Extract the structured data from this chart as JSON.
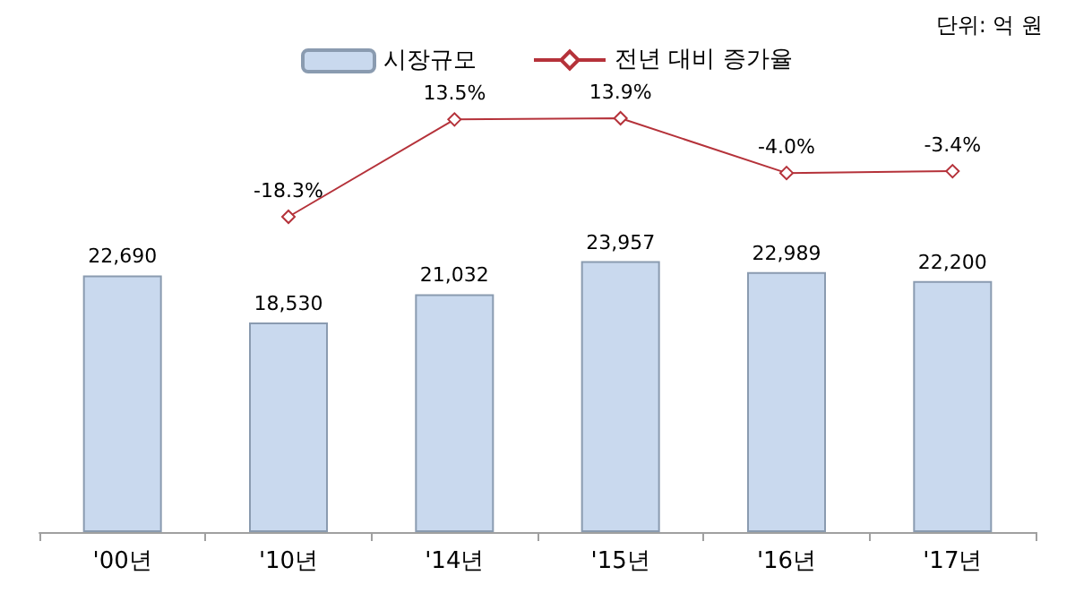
{
  "chart_data": [
    {
      "type": "bar",
      "categories": [
        "'00년",
        "'10년",
        "'14년",
        "'15년",
        "'16년",
        "'17년"
      ],
      "series": [
        {
          "name": "시장규모",
          "color": "#c9d9ee",
          "values": [
            22690,
            18530,
            21032,
            23957,
            22989,
            22200
          ],
          "value_labels": [
            "22,690",
            "18,530",
            "21,032",
            "23,957",
            "22,989",
            "22,200"
          ]
        }
      ],
      "annotations": [
        "단위: 억 원"
      ],
      "legend": "top",
      "tick_labels": "x"
    },
    {
      "type": "line",
      "categories": [
        null,
        null,
        null,
        null,
        null,
        null
      ],
      "series": [
        {
          "name": "전년 대비 증가율",
          "color": "#b5323a",
          "values": [
            null,
            -18.3,
            13.5,
            13.9,
            -4.0,
            -3.4
          ],
          "value_labels": [
            null,
            "-18.3%",
            "13.5%",
            "13.9%",
            "-4.0%",
            "-3.4%"
          ]
        }
      ],
      "legend": "top",
      "marker": "diamond",
      "tick_labels": false
    }
  ]
}
